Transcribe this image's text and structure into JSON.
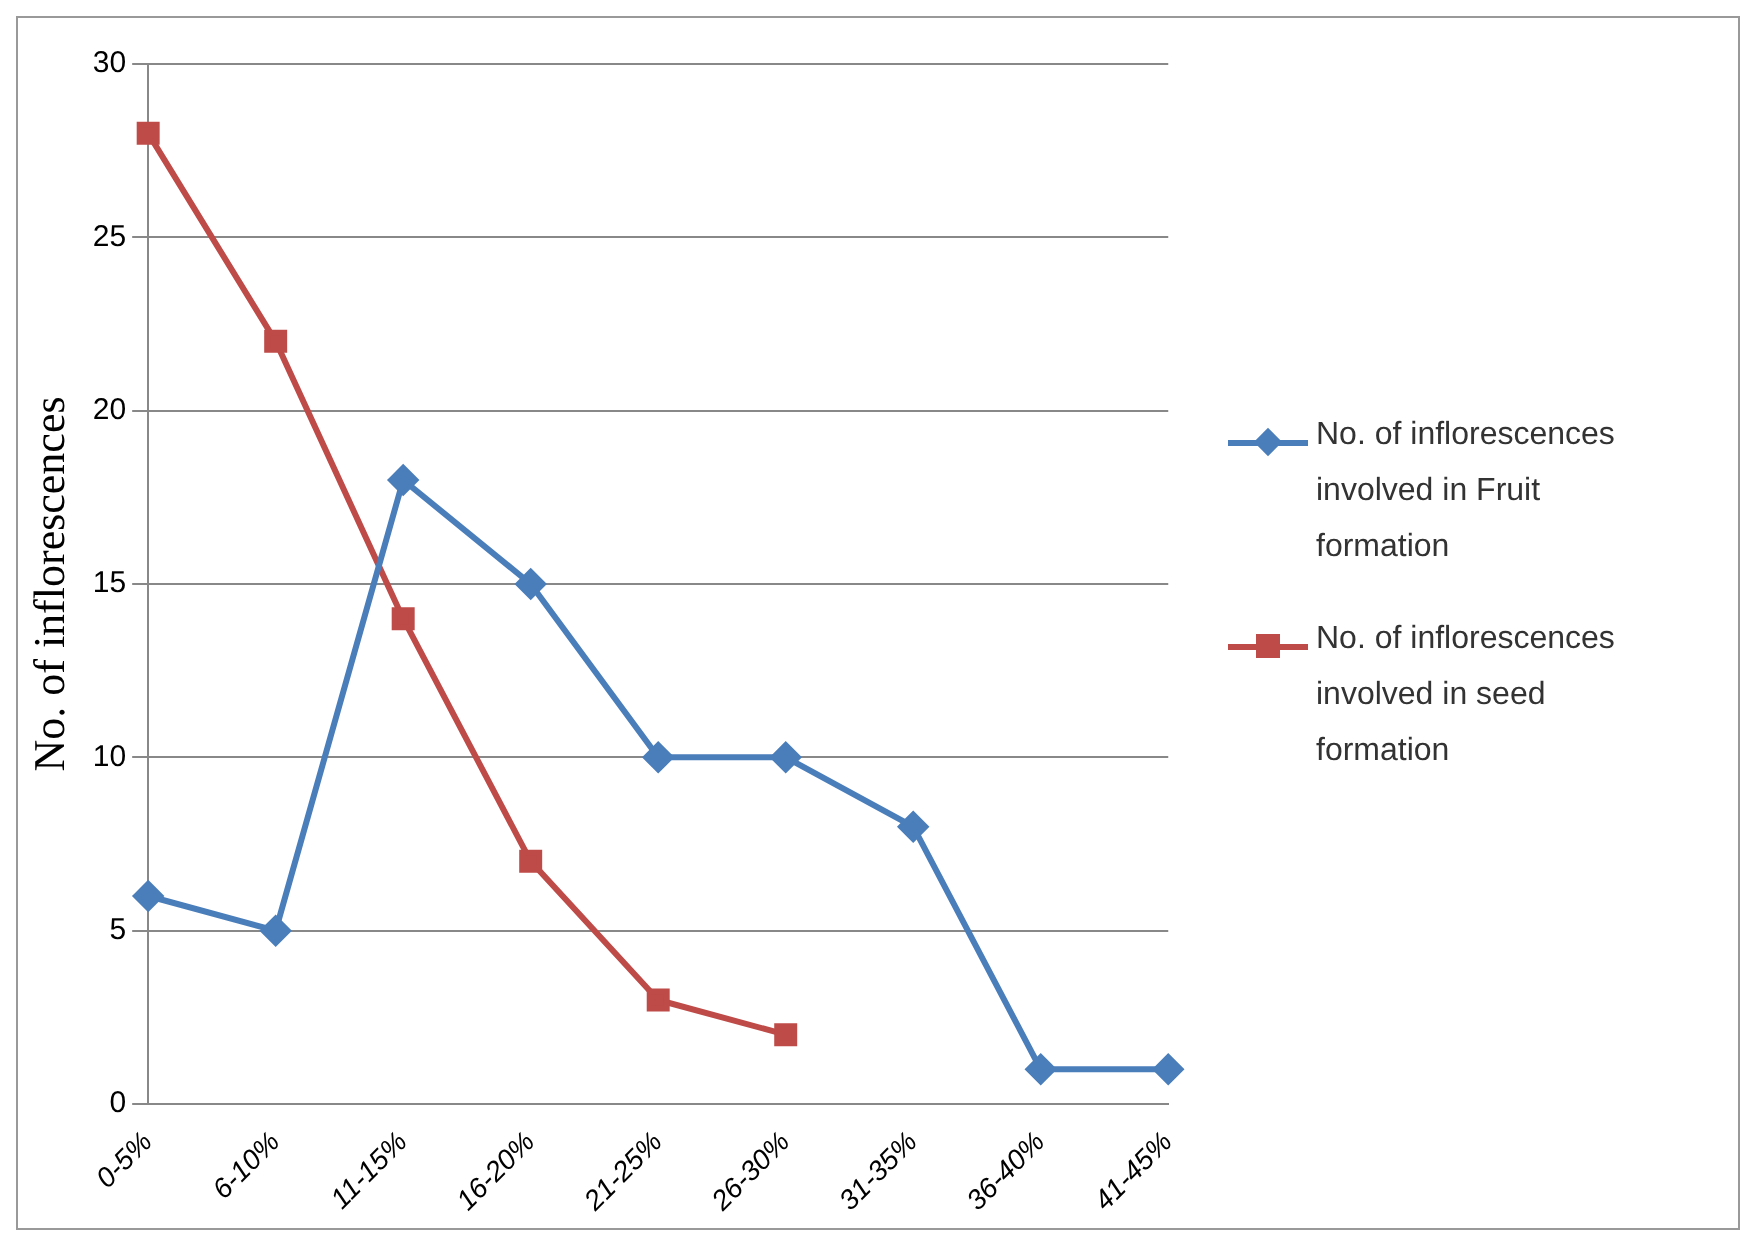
{
  "chart_data": {
    "type": "line",
    "ylabel": "No. of inflorescences",
    "categories": [
      "0-5%",
      "6-10%",
      "11-15%",
      "16-20%",
      "21-25%",
      "26-30%",
      "31-35%",
      "36-40%",
      "41-45%"
    ],
    "series": [
      {
        "name": "No. of inflorescences involved in Fruit formation",
        "color": "#4a7ebb",
        "marker": "diamond",
        "values": [
          6,
          5,
          18,
          15,
          10,
          10,
          8,
          1,
          1
        ]
      },
      {
        "name": "No. of inflorescences involved in seed formation",
        "color": "#be4b48",
        "marker": "square",
        "values": [
          28,
          22,
          14,
          7,
          3,
          2,
          null,
          null,
          null
        ]
      }
    ],
    "ylim": [
      0,
      30
    ],
    "yticks": [
      0,
      5,
      10,
      15,
      20,
      25,
      30
    ],
    "grid": "y",
    "legend": "right"
  }
}
